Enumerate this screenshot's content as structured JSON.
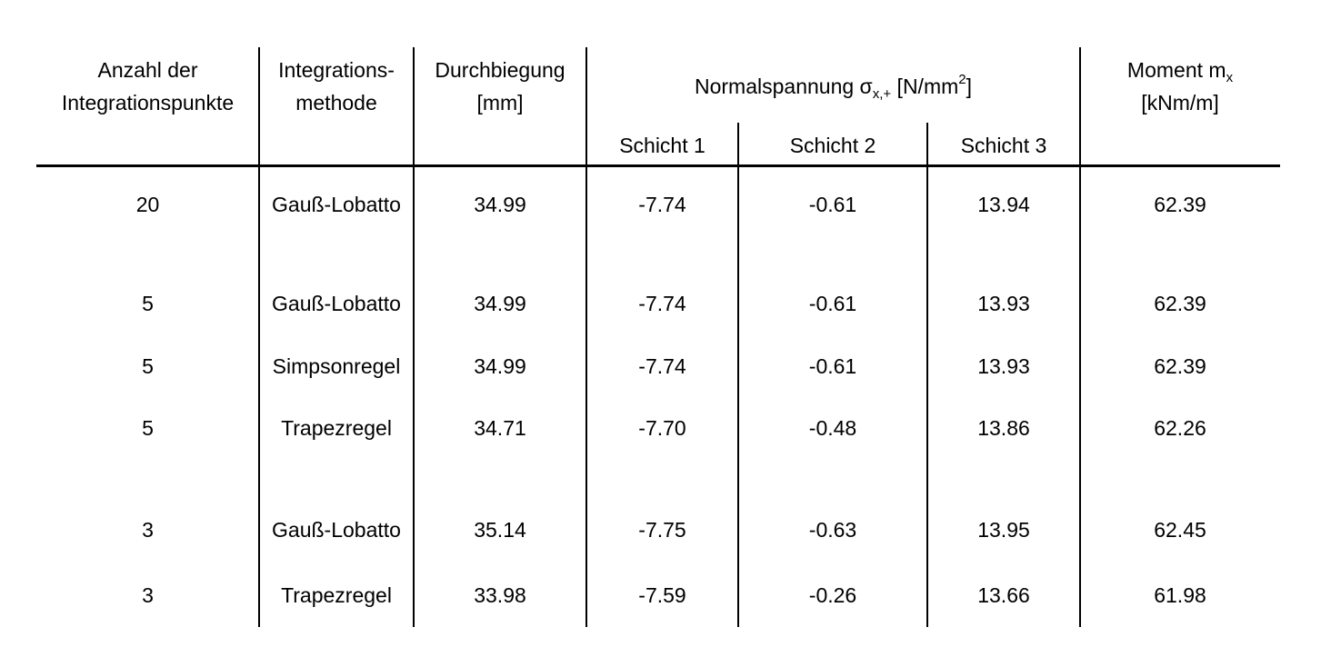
{
  "table": {
    "header": {
      "anzahl_line1": "Anzahl der",
      "anzahl_line2": "Integrationspunkte",
      "methode_line1": "Integrations-",
      "methode_line2": "methode",
      "durchbiegung_line1": "Durchbiegung",
      "durchbiegung_line2": "[mm]",
      "normalspannung_label": "Normalspannung σ",
      "normalspannung_sub": "x,+",
      "normalspannung_unit_open": " [N/mm",
      "normalspannung_unit_exp": "2",
      "normalspannung_unit_close": "]",
      "schicht": [
        "Schicht 1",
        "Schicht 2",
        "Schicht 3"
      ],
      "moment_label": "Moment m",
      "moment_sub": "x",
      "moment_unit": "[kNm/m]"
    },
    "rows": [
      {
        "punkte": "20",
        "methode": "Gauß-Lobatto",
        "durchbiegung": "34.99",
        "schicht1": "-7.74",
        "schicht2": "-0.61",
        "schicht3": "13.94",
        "moment": "62.39"
      },
      {
        "punkte": "5",
        "methode": "Gauß-Lobatto",
        "durchbiegung": "34.99",
        "schicht1": "-7.74",
        "schicht2": "-0.61",
        "schicht3": "13.93",
        "moment": "62.39"
      },
      {
        "punkte": "5",
        "methode": "Simpsonregel",
        "durchbiegung": "34.99",
        "schicht1": "-7.74",
        "schicht2": "-0.61",
        "schicht3": "13.93",
        "moment": "62.39"
      },
      {
        "punkte": "5",
        "methode": "Trapezregel",
        "durchbiegung": "34.71",
        "schicht1": "-7.70",
        "schicht2": "-0.48",
        "schicht3": "13.86",
        "moment": "62.26"
      },
      {
        "punkte": "3",
        "methode": "Gauß-Lobatto",
        "durchbiegung": "35.14",
        "schicht1": "-7.75",
        "schicht2": "-0.63",
        "schicht3": "13.95",
        "moment": "62.45"
      },
      {
        "punkte": "3",
        "methode": "Trapezregel",
        "durchbiegung": "33.98",
        "schicht1": "-7.59",
        "schicht2": "-0.26",
        "schicht3": "13.66",
        "moment": "61.98"
      }
    ]
  }
}
